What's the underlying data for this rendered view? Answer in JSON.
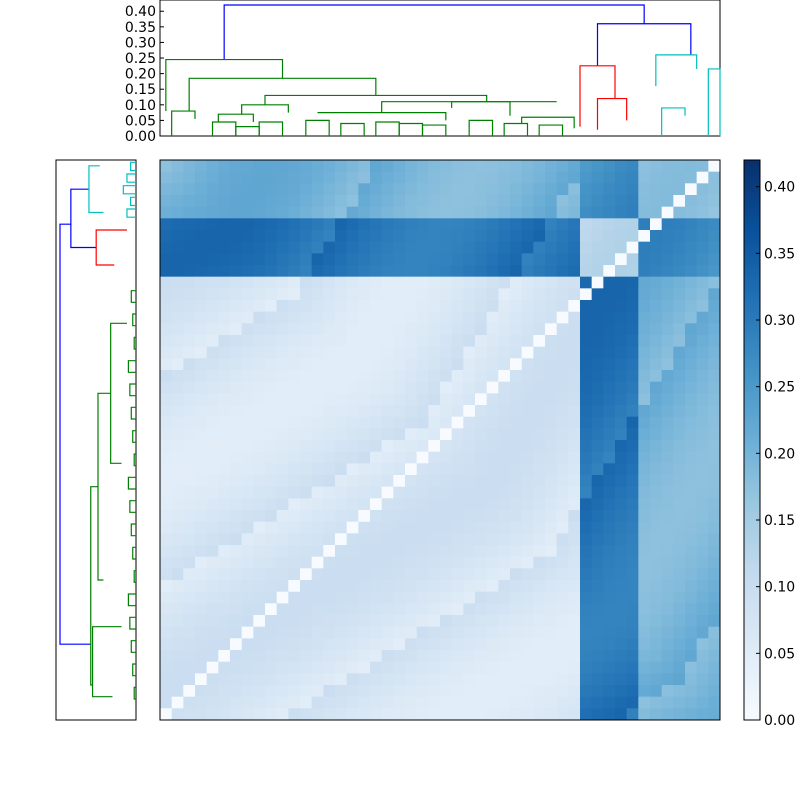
{
  "chart_data": [
    {
      "type": "dendrogram",
      "orientation": "top",
      "ylim": [
        0,
        0.42
      ],
      "yticks": [
        "0.00",
        "0.05",
        "0.10",
        "0.15",
        "0.20",
        "0.25",
        "0.30",
        "0.35",
        "0.40"
      ],
      "ytick_values": [
        0,
        0.05,
        0.1,
        0.15,
        0.2,
        0.25,
        0.3,
        0.35,
        0.4
      ],
      "leaves": 48,
      "link_colors": {
        "root": "#0000ff",
        "cluster_green": "#008000",
        "cluster_red": "#ff0000",
        "cluster_cyan": "#00bfbf"
      },
      "links": [
        {
          "l": 5.5,
          "r": 41.5,
          "h": 0.42,
          "lh": 0.245,
          "rh": 0.36,
          "c": "root"
        },
        {
          "l": 37.5,
          "r": 45.5,
          "h": 0.36,
          "lh": 0.225,
          "rh": 0.26,
          "c": "root"
        },
        {
          "l": 0.5,
          "r": 10.5,
          "h": 0.245,
          "lh": 0.08,
          "rh": 0.185,
          "c": "cluster_green"
        },
        {
          "l": 2.5,
          "r": 18.5,
          "h": 0.185,
          "lh": 0.08,
          "rh": 0.13,
          "c": "cluster_green"
        },
        {
          "l": 1.0,
          "r": 3.0,
          "h": 0.08,
          "lh": 0.0,
          "rh": 0.055,
          "c": "cluster_green"
        },
        {
          "l": 9.0,
          "r": 28.0,
          "h": 0.13,
          "lh": 0.1,
          "rh": 0.11,
          "c": "cluster_green"
        },
        {
          "l": 7.0,
          "r": 11.0,
          "h": 0.1,
          "lh": 0.07,
          "rh": 0.075,
          "c": "cluster_green"
        },
        {
          "l": 5.0,
          "r": 8.0,
          "h": 0.07,
          "lh": 0.045,
          "rh": 0.045,
          "c": "cluster_green"
        },
        {
          "l": 19.0,
          "r": 34.0,
          "h": 0.11,
          "lh": 0.075,
          "rh": 0.11,
          "c": "cluster_green"
        },
        {
          "l": 13.5,
          "r": 24.5,
          "h": 0.075,
          "lh": 0.075,
          "rh": 0.05,
          "c": "cluster_green"
        },
        {
          "l": 25.0,
          "r": 30.0,
          "h": 0.11,
          "lh": 0.09,
          "rh": 0.065,
          "c": "cluster_green"
        },
        {
          "l": 31.0,
          "r": 35.5,
          "h": 0.06,
          "lh": 0.04,
          "rh": 0.025,
          "c": "cluster_green"
        },
        {
          "l": 36.0,
          "r": 39.0,
          "h": 0.225,
          "lh": 0.03,
          "rh": 0.12,
          "c": "cluster_red"
        },
        {
          "l": 37.5,
          "r": 40.0,
          "h": 0.12,
          "lh": 0.02,
          "rh": 0.05,
          "c": "cluster_red"
        },
        {
          "l": 42.5,
          "r": 46.0,
          "h": 0.26,
          "lh": 0.16,
          "rh": 0.215,
          "c": "cluster_cyan"
        },
        {
          "l": 43.0,
          "r": 45.0,
          "h": 0.09,
          "lh": 0.0,
          "rh": 0.065,
          "c": "cluster_cyan"
        },
        {
          "l": 47.0,
          "r": 48.0,
          "h": 0.215,
          "lh": 0.0,
          "rh": 0.0,
          "c": "cluster_cyan"
        }
      ]
    },
    {
      "type": "dendrogram",
      "orientation": "left",
      "leaves": 48,
      "note_ticks": "none",
      "link_colors": {
        "root": "#0000ff",
        "cluster_green": "#008000",
        "cluster_red": "#ff0000",
        "cluster_cyan": "#00bfbf"
      }
    },
    {
      "type": "heatmap",
      "rows": 48,
      "cols": 48,
      "colormap": "Blues",
      "vmin": 0.0,
      "vmax": 0.42,
      "diagonal_value": 0.0,
      "clusters": [
        {
          "name": "cyan",
          "range": [
            0,
            5
          ]
        },
        {
          "name": "red",
          "range": [
            5,
            10
          ]
        },
        {
          "name": "green",
          "range": [
            10,
            48
          ]
        }
      ],
      "block_values": {
        "cyan-cyan": 0.16,
        "cyan-red": 0.27,
        "cyan-green": 0.2,
        "red-red": 0.11,
        "red-green": 0.31,
        "green-green": 0.07
      }
    },
    {
      "type": "colorbar",
      "range": [
        0.0,
        0.42
      ],
      "ticks": [
        "0.00",
        "0.05",
        "0.10",
        "0.15",
        "0.20",
        "0.25",
        "0.30",
        "0.35",
        "0.40"
      ],
      "tick_values": [
        0,
        0.05,
        0.1,
        0.15,
        0.2,
        0.25,
        0.3,
        0.35,
        0.4
      ],
      "colormap": "Blues"
    }
  ]
}
